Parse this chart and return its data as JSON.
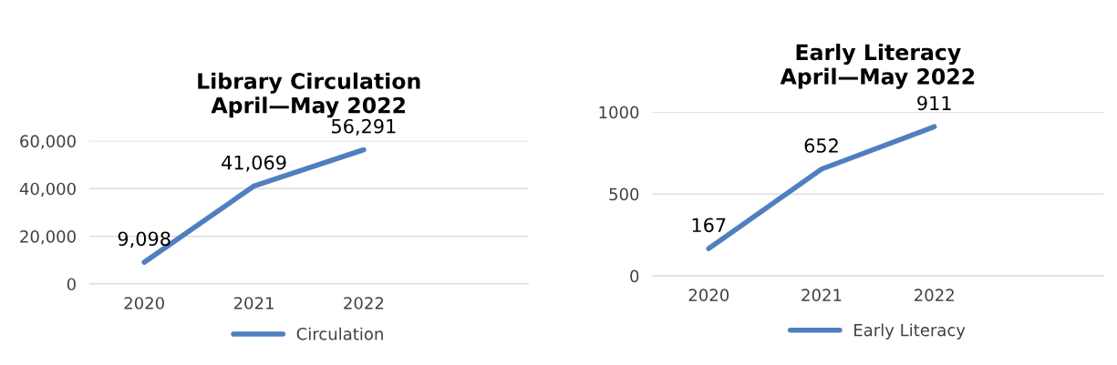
{
  "chart_data": [
    {
      "type": "line",
      "title": "Library Circulation\nApril—May 2022",
      "categories": [
        "2020",
        "2021",
        "2022",
        null
      ],
      "series": [
        {
          "name": "Circulation",
          "color": "#4f7fbf",
          "values": [
            9098,
            41069,
            56291,
            null
          ]
        }
      ],
      "ylim": [
        0,
        60000
      ],
      "yticks": [
        {
          "value": 0,
          "label": "0"
        },
        {
          "value": 20000,
          "label": "20,000"
        },
        {
          "value": 40000,
          "label": "40,000"
        },
        {
          "value": 60000,
          "label": "60,000"
        }
      ],
      "value_labels": [
        "9,098",
        "41,069",
        "56,291",
        null
      ],
      "grid": "y",
      "legend": "bottom",
      "marker": "none",
      "line_style": "solid"
    },
    {
      "type": "line",
      "title": "Early Literacy\nApril—May 2022",
      "categories": [
        "2020",
        "2021",
        "2022",
        null
      ],
      "series": [
        {
          "name": "Early Literacy",
          "color": "#4f7fbf",
          "values": [
            167,
            652,
            911,
            null
          ]
        }
      ],
      "ylim": [
        0,
        1000
      ],
      "yticks": [
        0,
        500,
        1000
      ],
      "data_labels": true,
      "grid": "y",
      "legend": "bottom",
      "marker": "none",
      "line_style": "solid"
    }
  ]
}
